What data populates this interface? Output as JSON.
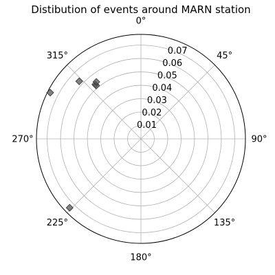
{
  "chart_data": {
    "type": "scatter",
    "projection": "polar",
    "title": "Distibution of events around MARN station",
    "theta_zero_location": "N",
    "theta_direction": "clockwise",
    "theta_ticks": [
      0,
      45,
      90,
      135,
      180,
      225,
      270,
      315
    ],
    "theta_tick_labels": [
      "0°",
      "45°",
      "90°",
      "135°",
      "180°",
      "225°",
      "270°",
      "315°"
    ],
    "r_ticks": [
      0.01,
      0.02,
      0.03,
      0.04,
      0.05,
      0.06,
      0.07
    ],
    "r_tick_labels": [
      "0.01",
      "0.02",
      "0.03",
      "0.04",
      "0.05",
      "0.06",
      "0.07"
    ],
    "rlim": [
      0,
      0.078
    ],
    "grid": true,
    "marker": "diamond",
    "colors": {
      "marker_fill": "#555555",
      "marker_edge": "#333333",
      "grid": "#b0b0b0",
      "spine": "#000000"
    },
    "points": [
      {
        "theta_deg": 320,
        "r": 0.053
      },
      {
        "theta_deg": 320,
        "r": 0.052
      },
      {
        "theta_deg": 322,
        "r": 0.054
      },
      {
        "theta_deg": 313,
        "r": 0.063
      },
      {
        "theta_deg": 297,
        "r": 0.076
      },
      {
        "theta_deg": 226,
        "r": 0.074
      }
    ]
  }
}
